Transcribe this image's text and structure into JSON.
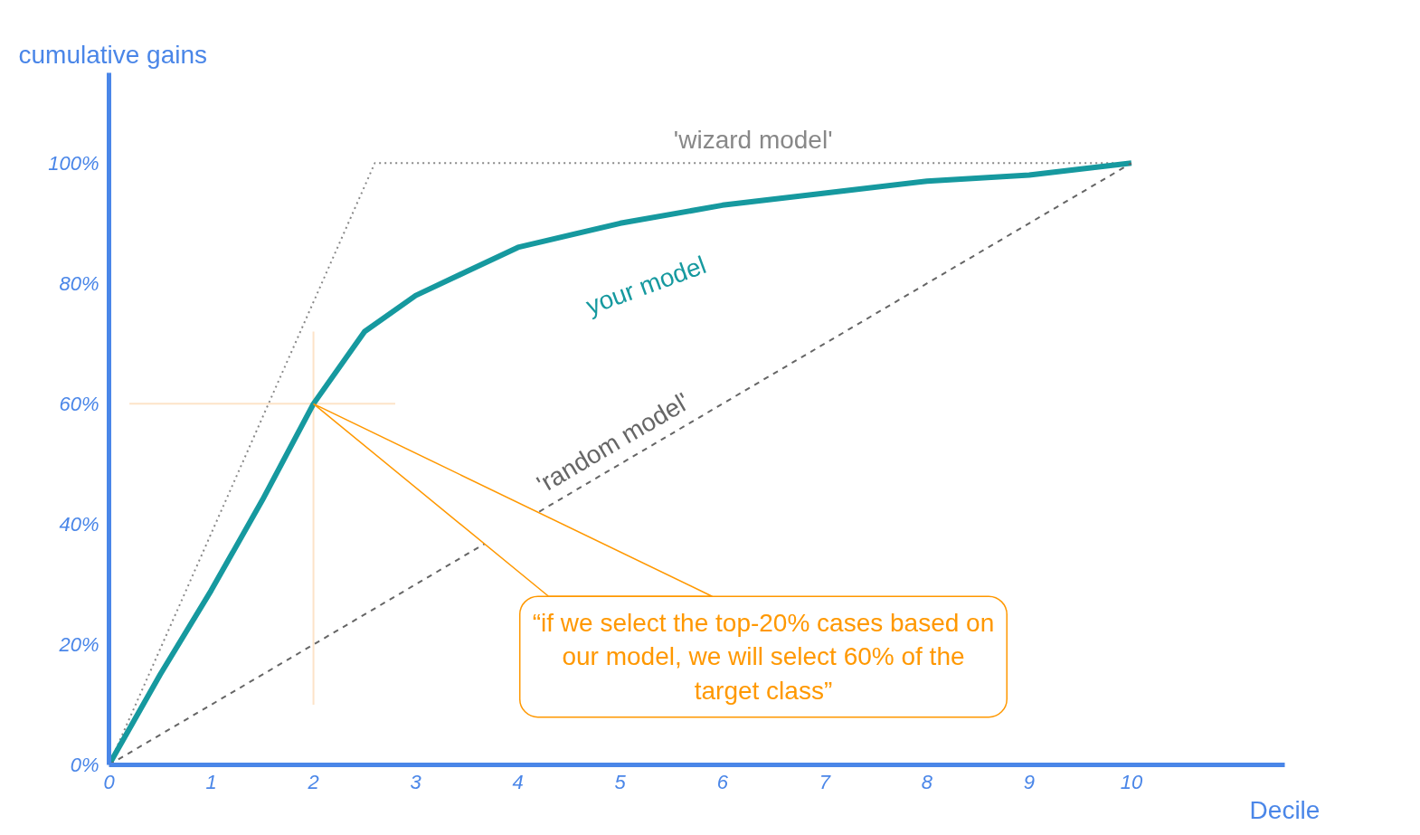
{
  "chart_data": {
    "type": "line",
    "ylabel": "cumulative gains",
    "xlabel": "Decile",
    "xlim": [
      0,
      11.5
    ],
    "ylim": [
      0,
      115
    ],
    "xticks": [
      0,
      1,
      2,
      3,
      4,
      5,
      6,
      7,
      8,
      9,
      10
    ],
    "yticks": [
      {
        "value": 0,
        "label": "0%"
      },
      {
        "value": 20,
        "label": "20%"
      },
      {
        "value": 40,
        "label": "40%"
      },
      {
        "value": 60,
        "label": "60%"
      },
      {
        "value": 80,
        "label": "80%"
      },
      {
        "value": 100,
        "label": "100%"
      }
    ],
    "grid": false,
    "series": [
      {
        "name": "'wizard model'",
        "color": "#888888",
        "line_style": "dotted",
        "x": [
          0,
          2.6,
          10
        ],
        "values": [
          0,
          100,
          100
        ]
      },
      {
        "name": "your model",
        "color": "#16999f",
        "line_style": "solid",
        "x": [
          0,
          0.5,
          1,
          1.5,
          2,
          2.5,
          3,
          3.5,
          4,
          5,
          6,
          7,
          8,
          9,
          10
        ],
        "values": [
          0,
          15,
          29,
          44,
          60,
          72,
          78,
          82,
          86,
          90,
          93,
          95,
          97,
          98,
          100
        ]
      },
      {
        "name": "'random model'",
        "color": "#666666",
        "line_style": "dashed",
        "x": [
          0,
          10
        ],
        "values": [
          0,
          100
        ]
      }
    ],
    "ref_lines": [
      {
        "axis": "x",
        "value": 2,
        "color": "#fde3c8"
      },
      {
        "axis": "y",
        "value": 60,
        "color": "#fde3c8"
      }
    ],
    "annotations": [
      {
        "text": "“if we select the top-20% cases based on our model, we will select 60% of the target class”",
        "x": 2,
        "y": 60
      }
    ]
  }
}
